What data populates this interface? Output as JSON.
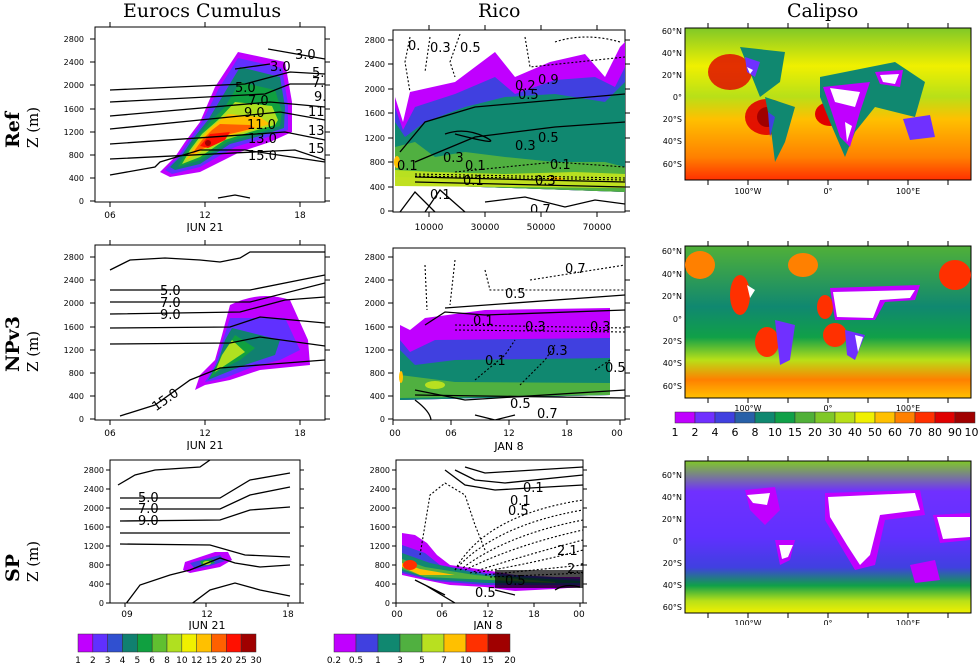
{
  "column_titles": [
    "Eurocs Cumulus",
    "Rico",
    "Calipso"
  ],
  "row_labels": [
    {
      "name": "Ref",
      "unit": "Z (m)"
    },
    {
      "name": "NPv3",
      "unit": "Z (m)"
    },
    {
      "name": "SP",
      "unit": "Z (m)"
    }
  ],
  "chart_data": [
    {
      "type": "heatmap",
      "panel": "Eurocs Cumulus / Ref",
      "ylabel": "Z (m)",
      "yticks": [
        0,
        400,
        800,
        1200,
        1600,
        2000,
        2400,
        2800
      ],
      "ylim": [
        0,
        2950
      ],
      "xticks": [
        "06",
        "12",
        "18"
      ],
      "xlabel": "JUN 21",
      "contour_labels": [
        "3.0",
        "3.0",
        "5.0",
        "5.0",
        "7.0",
        "7.0",
        "9.0",
        "9.0",
        "11.0",
        "11.0",
        "13.0",
        "13.0",
        "15.0",
        "15.0"
      ]
    },
    {
      "type": "heatmap",
      "panel": "Rico / Ref",
      "yticks": [
        0,
        400,
        800,
        1200,
        1600,
        2000,
        2400,
        2800
      ],
      "ylim": [
        0,
        2950
      ],
      "xticks": [
        "10000",
        "30000",
        "50000",
        "70000"
      ],
      "xlabel": "",
      "contour_labels": [
        "0.",
        "0.3",
        "0.5",
        "0.9",
        "0.2",
        "0.5",
        "0.5",
        "0.3",
        "0.3",
        "0.1",
        "0.1",
        "0.1",
        "0.1",
        "0.3",
        "0.1",
        "0.7",
        "0.7"
      ]
    },
    {
      "type": "heatmap",
      "panel": "Calipso / Ref",
      "yticks": [
        "60°N",
        "40°N",
        "20°N",
        "0°",
        "20°S",
        "40°S",
        "60°S"
      ],
      "xticks": [
        "100°W",
        "0°",
        "100°E"
      ]
    },
    {
      "type": "heatmap",
      "panel": "Eurocs Cumulus / NPv3",
      "ylabel": "Z (m)",
      "yticks": [
        0,
        400,
        800,
        1200,
        1600,
        2000,
        2400,
        2800
      ],
      "ylim": [
        0,
        2950
      ],
      "xticks": [
        "06",
        "12",
        "18"
      ],
      "xlabel": "JUN 21",
      "contour_labels": [
        "5.0",
        "7.0",
        "9.0",
        "15.0"
      ]
    },
    {
      "type": "heatmap",
      "panel": "Rico / NPv3",
      "yticks": [
        0,
        400,
        800,
        1200,
        1600,
        2000,
        2400,
        2800
      ],
      "ylim": [
        0,
        2950
      ],
      "xticks": [
        "00",
        "06",
        "12",
        "18",
        "00"
      ],
      "xlabel": "JAN  8",
      "contour_labels": [
        "0.7",
        "0.5",
        "0.1",
        "0.3",
        "0.3",
        "0.1",
        "0.3",
        "0.5",
        "0.5",
        "0.7"
      ]
    },
    {
      "type": "heatmap",
      "panel": "Calipso / NPv3",
      "yticks": [
        "60°N",
        "40°N",
        "20°N",
        "0°",
        "20°S",
        "40°S",
        "60°S"
      ],
      "xticks": [
        "100°W",
        "0°",
        "100°E"
      ]
    },
    {
      "type": "heatmap",
      "panel": "Eurocs Cumulus / SP",
      "ylabel": "Z (m)",
      "yticks": [
        0,
        400,
        800,
        1200,
        1600,
        2000,
        2400,
        2800
      ],
      "ylim": [
        0,
        2950
      ],
      "xticks": [
        "09",
        "12",
        "18"
      ],
      "xlabel": "JUN 21",
      "contour_labels": [
        "5.0",
        "7.0",
        "9.0"
      ]
    },
    {
      "type": "heatmap",
      "panel": "Rico / SP",
      "yticks": [
        0,
        400,
        800,
        1200,
        1600,
        2000,
        2400,
        2800
      ],
      "ylim": [
        0,
        2950
      ],
      "xticks": [
        "00",
        "06",
        "12",
        "18",
        "00"
      ],
      "xlabel": "JAN  8",
      "contour_labels": [
        "0.1",
        "0.1",
        "0.5",
        "2.1",
        "2.1",
        "0.5",
        "0.5"
      ]
    },
    {
      "type": "heatmap",
      "panel": "Calipso / SP",
      "yticks": [
        "60°N",
        "40°N",
        "20°N",
        "0°",
        "20°S",
        "40°S",
        "60°S"
      ],
      "xticks": [
        "100°W",
        "0°",
        "100°E"
      ]
    }
  ],
  "colorbars": {
    "eurocs": {
      "labels": [
        "1",
        "2",
        "3",
        "4",
        "5",
        "6",
        "8",
        "10",
        "12",
        "15",
        "20",
        "25",
        "30"
      ],
      "colors": [
        "#c000ff",
        "#6030ff",
        "#3050d0",
        "#108070",
        "#10a040",
        "#60c030",
        "#b0e020",
        "#f0f000",
        "#ffc000",
        "#ff6000",
        "#ff1000",
        "#a00000"
      ]
    },
    "rico": {
      "labels": [
        "0.2",
        "0.5",
        "1",
        "3",
        "5",
        "7",
        "10",
        "15",
        "20"
      ],
      "colors": [
        "#c000ff",
        "#4040e0",
        "#108870",
        "#50b040",
        "#b8e020",
        "#ffc000",
        "#ff3000",
        "#a00000"
      ]
    },
    "calipso": {
      "labels": [
        "1",
        "2",
        "4",
        "6",
        "8",
        "10",
        "15",
        "20",
        "30",
        "40",
        "50",
        "60",
        "70",
        "80",
        "90",
        "100"
      ],
      "colors": [
        "#c000ff",
        "#7030ff",
        "#4040e0",
        "#2860a8",
        "#108870",
        "#10a048",
        "#50b038",
        "#80c828",
        "#b8e018",
        "#f0f000",
        "#ffc000",
        "#ff8000",
        "#ff3000",
        "#e00000",
        "#a00000"
      ]
    }
  }
}
